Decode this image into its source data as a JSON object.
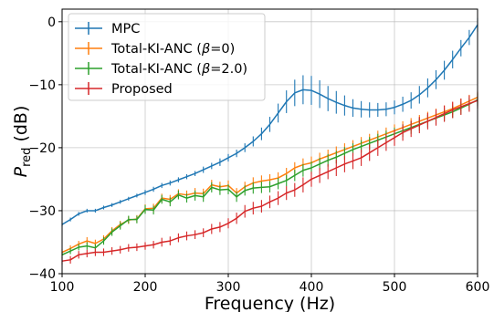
{
  "chart_data": {
    "type": "line",
    "title": "",
    "xlabel": "Frequency (Hz)",
    "ylabel": {
      "main": "P",
      "sub": "red",
      "suffix": " (dB)"
    },
    "xlim": [
      100,
      600
    ],
    "ylim": [
      -40,
      2
    ],
    "xticks": [
      100,
      200,
      300,
      400,
      500,
      600
    ],
    "yticks": [
      0,
      -10,
      -20,
      -30,
      -40
    ],
    "xtick_labels": [
      "100",
      "200",
      "300",
      "400",
      "500",
      "600"
    ],
    "ytick_labels": [
      "0",
      "−10",
      "−20",
      "−30",
      "−40"
    ],
    "grid": true,
    "legend_position": "top-left",
    "x": [
      100,
      110,
      120,
      130,
      140,
      150,
      160,
      170,
      180,
      190,
      200,
      210,
      220,
      230,
      240,
      250,
      260,
      270,
      280,
      290,
      300,
      310,
      320,
      330,
      340,
      350,
      360,
      370,
      380,
      390,
      400,
      410,
      420,
      430,
      440,
      450,
      460,
      470,
      480,
      490,
      500,
      510,
      520,
      530,
      540,
      550,
      560,
      570,
      580,
      590,
      600
    ],
    "series": [
      {
        "name": "MPC",
        "color": "#1f77b4",
        "values": [
          -32.2,
          -31.4,
          -30.5,
          -30.0,
          -30.0,
          -29.5,
          -29.1,
          -28.6,
          -28.1,
          -27.6,
          -27.1,
          -26.6,
          -26.0,
          -25.6,
          -25.1,
          -24.6,
          -24.1,
          -23.5,
          -22.9,
          -22.3,
          -21.6,
          -20.9,
          -20.0,
          -19.0,
          -17.8,
          -16.3,
          -14.5,
          -12.7,
          -11.3,
          -10.8,
          -10.9,
          -11.5,
          -12.2,
          -12.8,
          -13.3,
          -13.7,
          -13.9,
          -14.0,
          -14.0,
          -13.9,
          -13.6,
          -13.1,
          -12.5,
          -11.6,
          -10.5,
          -9.2,
          -7.7,
          -6.0,
          -4.2,
          -2.5,
          -0.5
        ],
        "errors": [
          0.3,
          0.3,
          0.3,
          0.3,
          0.3,
          0.3,
          0.3,
          0.3,
          0.3,
          0.3,
          0.4,
          0.4,
          0.4,
          0.4,
          0.4,
          0.4,
          0.4,
          0.5,
          0.5,
          0.6,
          0.6,
          0.6,
          0.7,
          0.8,
          1.0,
          1.2,
          1.5,
          1.8,
          2.1,
          2.3,
          2.3,
          2.2,
          2.0,
          1.8,
          1.6,
          1.4,
          1.3,
          1.2,
          1.1,
          1.1,
          1.1,
          1.2,
          1.3,
          1.4,
          1.5,
          1.5,
          1.5,
          1.4,
          1.3,
          1.2,
          1.1
        ]
      },
      {
        "name": "Total-KI-ANC (β=0)",
        "color": "#ff7f0e",
        "values": [
          -36.6,
          -36.0,
          -35.3,
          -34.8,
          -35.2,
          -34.5,
          -33.2,
          -32.2,
          -31.5,
          -31.3,
          -29.7,
          -29.6,
          -28.0,
          -28.2,
          -27.3,
          -27.5,
          -27.2,
          -27.3,
          -25.9,
          -26.2,
          -26.0,
          -27.2,
          -26.2,
          -25.6,
          -25.3,
          -25.1,
          -24.8,
          -24.1,
          -23.2,
          -22.7,
          -22.4,
          -21.8,
          -21.3,
          -20.8,
          -20.3,
          -19.8,
          -19.3,
          -18.8,
          -18.3,
          -17.8,
          -17.3,
          -16.8,
          -16.3,
          -15.8,
          -15.3,
          -14.8,
          -14.3,
          -13.8,
          -13.2,
          -12.6,
          -12.0
        ],
        "errors": [
          0.5,
          0.5,
          0.5,
          0.6,
          0.6,
          0.6,
          0.6,
          0.6,
          0.6,
          0.6,
          0.7,
          0.7,
          0.7,
          0.7,
          0.7,
          0.7,
          0.8,
          0.8,
          0.8,
          0.8,
          0.8,
          0.8,
          0.8,
          0.9,
          0.9,
          0.9,
          0.9,
          0.9,
          0.9,
          1.0,
          1.0,
          1.0,
          1.0,
          1.0,
          1.0,
          1.0,
          1.0,
          1.0,
          1.0,
          1.0,
          1.0,
          1.0,
          1.0,
          1.0,
          1.0,
          1.0,
          1.0,
          1.0,
          1.0,
          1.0,
          1.0
        ]
      },
      {
        "name": "Total-KI-ANC (β=2.0)",
        "color": "#2ca02c",
        "values": [
          -37.0,
          -36.4,
          -35.8,
          -35.6,
          -35.9,
          -34.8,
          -33.4,
          -32.4,
          -31.4,
          -31.4,
          -29.8,
          -29.9,
          -28.2,
          -28.6,
          -27.5,
          -28.0,
          -27.6,
          -27.8,
          -26.3,
          -26.7,
          -26.6,
          -27.8,
          -26.8,
          -26.4,
          -26.3,
          -26.2,
          -25.7,
          -25.2,
          -24.4,
          -23.6,
          -23.2,
          -22.6,
          -22.0,
          -21.5,
          -20.9,
          -20.3,
          -19.8,
          -19.3,
          -18.8,
          -18.3,
          -17.8,
          -17.3,
          -16.8,
          -16.3,
          -15.8,
          -15.3,
          -14.8,
          -14.3,
          -13.7,
          -13.1,
          -12.4
        ],
        "errors": [
          0.5,
          0.5,
          0.5,
          0.6,
          0.6,
          0.6,
          0.6,
          0.6,
          0.6,
          0.6,
          0.7,
          0.7,
          0.7,
          0.7,
          0.7,
          0.7,
          0.8,
          0.8,
          0.8,
          0.8,
          0.8,
          0.8,
          0.8,
          0.9,
          0.9,
          0.9,
          0.9,
          0.9,
          0.9,
          1.0,
          1.0,
          1.0,
          1.0,
          1.0,
          1.0,
          1.0,
          1.0,
          1.0,
          1.0,
          1.0,
          1.0,
          1.0,
          1.0,
          1.0,
          1.0,
          1.0,
          1.0,
          1.0,
          1.0,
          1.0,
          1.0
        ]
      },
      {
        "name": "Proposed",
        "color": "#d62728",
        "values": [
          -38.0,
          -37.8,
          -37.0,
          -36.8,
          -36.6,
          -36.6,
          -36.4,
          -36.2,
          -35.9,
          -35.8,
          -35.6,
          -35.4,
          -35.0,
          -34.8,
          -34.3,
          -34.0,
          -33.8,
          -33.5,
          -32.9,
          -32.6,
          -32.0,
          -31.2,
          -30.1,
          -29.6,
          -29.3,
          -28.6,
          -28.0,
          -27.2,
          -26.7,
          -25.9,
          -25.0,
          -24.4,
          -23.8,
          -23.2,
          -22.6,
          -22.1,
          -21.6,
          -20.8,
          -20.0,
          -19.2,
          -18.4,
          -17.6,
          -17.0,
          -16.4,
          -15.8,
          -15.2,
          -14.6,
          -14.0,
          -13.5,
          -13.0,
          -12.5
        ],
        "errors": [
          0.6,
          0.6,
          0.6,
          0.6,
          0.6,
          0.6,
          0.6,
          0.6,
          0.6,
          0.6,
          0.6,
          0.6,
          0.7,
          0.7,
          0.7,
          0.7,
          0.7,
          0.7,
          0.8,
          0.8,
          0.8,
          0.9,
          1.0,
          1.0,
          1.0,
          1.0,
          1.1,
          1.1,
          1.1,
          1.2,
          1.2,
          1.2,
          1.2,
          1.3,
          1.3,
          1.3,
          1.3,
          1.3,
          1.3,
          1.3,
          1.3,
          1.3,
          1.3,
          1.3,
          1.3,
          1.3,
          1.3,
          1.3,
          1.3,
          1.3,
          1.3
        ]
      }
    ],
    "legend": [
      {
        "main": "MPC",
        "beta": "",
        "tail": ""
      },
      {
        "main": "Total-KI-ANC (",
        "beta": "β",
        "tail": "=0)"
      },
      {
        "main": "Total-KI-ANC (",
        "beta": "β",
        "tail": "=2.0)"
      },
      {
        "main": "Proposed",
        "beta": "",
        "tail": ""
      }
    ]
  }
}
